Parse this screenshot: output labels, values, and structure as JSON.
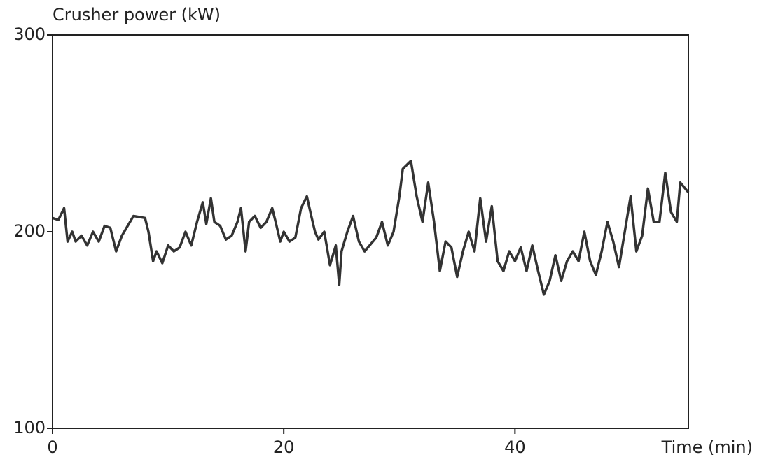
{
  "chart_data": {
    "type": "line",
    "ylabel": "Crusher power (kW)",
    "xlabel": "Time (min)",
    "x": [
      0,
      0.5,
      1,
      1.3,
      1.7,
      2,
      2.5,
      3,
      3.5,
      4,
      4.5,
      5,
      5.5,
      6,
      6.5,
      7,
      8,
      8.3,
      8.7,
      9,
      9.5,
      10,
      10.5,
      11,
      11.5,
      12,
      12.5,
      13,
      13.3,
      13.7,
      14,
      14.5,
      15,
      15.5,
      16,
      16.3,
      16.7,
      17,
      17.5,
      18,
      18.5,
      19,
      19.3,
      19.7,
      20,
      20.5,
      21,
      21.5,
      22,
      22.3,
      22.7,
      23,
      23.5,
      24,
      24.5,
      24.8,
      25,
      25.5,
      26,
      26.5,
      27,
      28,
      28.5,
      29,
      29.5,
      30,
      30.3,
      31,
      31.5,
      32,
      32.5,
      33,
      33.5,
      34,
      34.5,
      35,
      35.5,
      36,
      36.5,
      37,
      37.5,
      38,
      38.5,
      39,
      39.5,
      40,
      40.5,
      41,
      41.5,
      42,
      42.5,
      43,
      43.5,
      44,
      44.5,
      45,
      45.5,
      46,
      46.5,
      47,
      47.5,
      48,
      48.5,
      49,
      49.5,
      50,
      50.5,
      51,
      51.5,
      52,
      52.5,
      53,
      53.5,
      54,
      54.3,
      55
    ],
    "series": [
      {
        "color": "#333333",
        "values": [
          207,
          206,
          212,
          195,
          200,
          195,
          198,
          193,
          200,
          195,
          203,
          202,
          190,
          198,
          203,
          208,
          207,
          200,
          185,
          190,
          184,
          193,
          190,
          192,
          200,
          193,
          205,
          215,
          204,
          217,
          205,
          203,
          196,
          198,
          205,
          212,
          190,
          205,
          208,
          202,
          205,
          212,
          205,
          195,
          200,
          195,
          197,
          212,
          218,
          210,
          200,
          196,
          200,
          183,
          193,
          173,
          190,
          200,
          208,
          195,
          190,
          197,
          205,
          193,
          200,
          218,
          232,
          236,
          218,
          205,
          225,
          205,
          180,
          195,
          192,
          177,
          190,
          200,
          190,
          217,
          195,
          213,
          185,
          180,
          190,
          185,
          192,
          180,
          193,
          180,
          168,
          175,
          188,
          175,
          185,
          190,
          185,
          200,
          185,
          178,
          190,
          205,
          195,
          182,
          200,
          218,
          190,
          198,
          222,
          205,
          205,
          230,
          210,
          205,
          225,
          220
        ]
      }
    ],
    "xlim": [
      0,
      55
    ],
    "ylim": [
      100,
      300
    ],
    "xticks": [
      0,
      20,
      40
    ],
    "yticks": [
      100,
      200,
      300
    ]
  }
}
